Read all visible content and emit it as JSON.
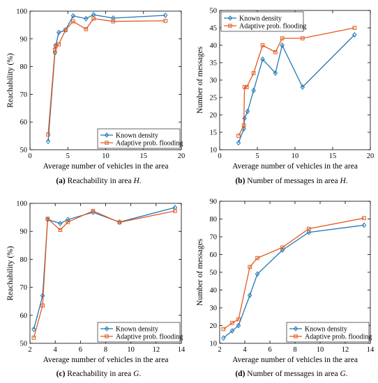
{
  "colors": {
    "known": "#1f77b4",
    "adaptive": "#e2591f",
    "axis": "#000000",
    "grid": "#cccccc"
  },
  "chart_data": [
    {
      "type": "line",
      "caption": {
        "label": "(a)",
        "text": "Reachability in area ",
        "area": "H",
        "end": "."
      },
      "xlabel": "Average number of vehicles in the area",
      "ylabel": "Reachability (%)",
      "xlim": [
        0,
        20
      ],
      "ylim": [
        50,
        100
      ],
      "xticks": [
        0,
        5,
        10,
        15,
        20
      ],
      "yticks": [
        50,
        60,
        70,
        80,
        90,
        100
      ],
      "legend_position": "bottom-right",
      "series": [
        {
          "name": "Known density",
          "color": "#1f77b4",
          "marker": "diamond",
          "x": [
            2.4,
            3.3,
            3.4,
            3.8,
            4.7,
            5.7,
            7.4,
            8.4,
            11.0,
            17.9
          ],
          "y": [
            53,
            85,
            87.5,
            92.3,
            93.2,
            98.3,
            97.3,
            98.7,
            97.5,
            98.5
          ]
        },
        {
          "name": "Adaptive prob. flooding",
          "color": "#e2591f",
          "marker": "square",
          "x": [
            2.4,
            3.3,
            3.4,
            3.8,
            4.7,
            5.7,
            7.4,
            8.4,
            11.0,
            17.9
          ],
          "y": [
            55.5,
            86,
            87.5,
            88,
            93.2,
            96.3,
            93.5,
            97.3,
            96.3,
            96.5
          ]
        }
      ]
    },
    {
      "type": "line",
      "caption": {
        "label": "(b)",
        "text": "Number of messages in area ",
        "area": "H",
        "end": "."
      },
      "xlabel": "Average number of vehicles in the area",
      "ylabel": "Number of messages",
      "xlim": [
        0,
        20
      ],
      "ylim": [
        10,
        50
      ],
      "xticks": [
        0,
        5,
        10,
        15,
        20
      ],
      "yticks": [
        10,
        15,
        20,
        25,
        30,
        35,
        40,
        45,
        50
      ],
      "legend_position": "top-left",
      "series": [
        {
          "name": "Known density",
          "color": "#1f77b4",
          "marker": "diamond",
          "x": [
            2.5,
            3.2,
            3.3,
            3.7,
            4.5,
            5.7,
            7.4,
            8.3,
            11.0,
            17.9
          ],
          "y": [
            12,
            16,
            19,
            21,
            27,
            36,
            32,
            40,
            28,
            43
          ]
        },
        {
          "name": "Adaptive prob. flooding",
          "color": "#e2591f",
          "marker": "square",
          "x": [
            2.5,
            3.2,
            3.3,
            3.6,
            4.5,
            5.7,
            7.4,
            8.3,
            11.0,
            17.9
          ],
          "y": [
            14,
            17,
            28,
            28,
            32,
            40,
            38,
            42,
            42,
            45
          ]
        }
      ]
    },
    {
      "type": "line",
      "caption": {
        "label": "(c)",
        "text": "Reachability in area ",
        "area": "G",
        "end": "."
      },
      "xlabel": "Average number of vehicles in the area",
      "ylabel": "Reachability (%)",
      "xlim": [
        2,
        14
      ],
      "ylim": [
        50,
        100
      ],
      "xticks": [
        2,
        4,
        6,
        8,
        10,
        12,
        14
      ],
      "yticks": [
        50,
        60,
        70,
        80,
        90,
        100
      ],
      "legend_position": "bottom-right",
      "series": [
        {
          "name": "Known density",
          "color": "#1f77b4",
          "marker": "diamond",
          "x": [
            2.3,
            3.0,
            3.4,
            4.4,
            5.0,
            7.0,
            9.1,
            13.5
          ],
          "y": [
            55,
            67,
            94.2,
            92.8,
            94.2,
            96.8,
            93.3,
            98.5
          ]
        },
        {
          "name": "Adaptive prob. flooding",
          "color": "#e2591f",
          "marker": "square",
          "x": [
            2.3,
            3.0,
            3.4,
            4.4,
            5.0,
            7.0,
            9.1,
            13.5
          ],
          "y": [
            52,
            63.5,
            94.5,
            90.5,
            93.3,
            97.3,
            93.2,
            97.3
          ]
        }
      ]
    },
    {
      "type": "line",
      "caption": {
        "label": "(d)",
        "text": "Number of messages in area ",
        "area": "G",
        "end": "."
      },
      "xlabel": "Average number of vehicles in the area",
      "ylabel": "Number of messages",
      "xlim": [
        2,
        14
      ],
      "ylim": [
        10,
        90
      ],
      "xticks": [
        2,
        4,
        6,
        8,
        10,
        12,
        14
      ],
      "yticks": [
        10,
        20,
        30,
        40,
        50,
        60,
        70,
        80,
        90
      ],
      "legend_position": "bottom-right",
      "series": [
        {
          "name": "Known density",
          "color": "#1f77b4",
          "marker": "diamond",
          "x": [
            2.3,
            3.0,
            3.5,
            4.4,
            5.0,
            7.0,
            9.1,
            13.5
          ],
          "y": [
            13,
            17,
            20,
            37,
            49,
            62.5,
            72.5,
            76.5
          ]
        },
        {
          "name": "Adaptive prob. flooding",
          "color": "#e2591f",
          "marker": "square",
          "x": [
            2.3,
            3.0,
            3.5,
            4.4,
            5.0,
            7.0,
            9.1,
            13.5
          ],
          "y": [
            18,
            21.5,
            23.5,
            53,
            58,
            64,
            74.5,
            80.5
          ]
        }
      ]
    }
  ]
}
